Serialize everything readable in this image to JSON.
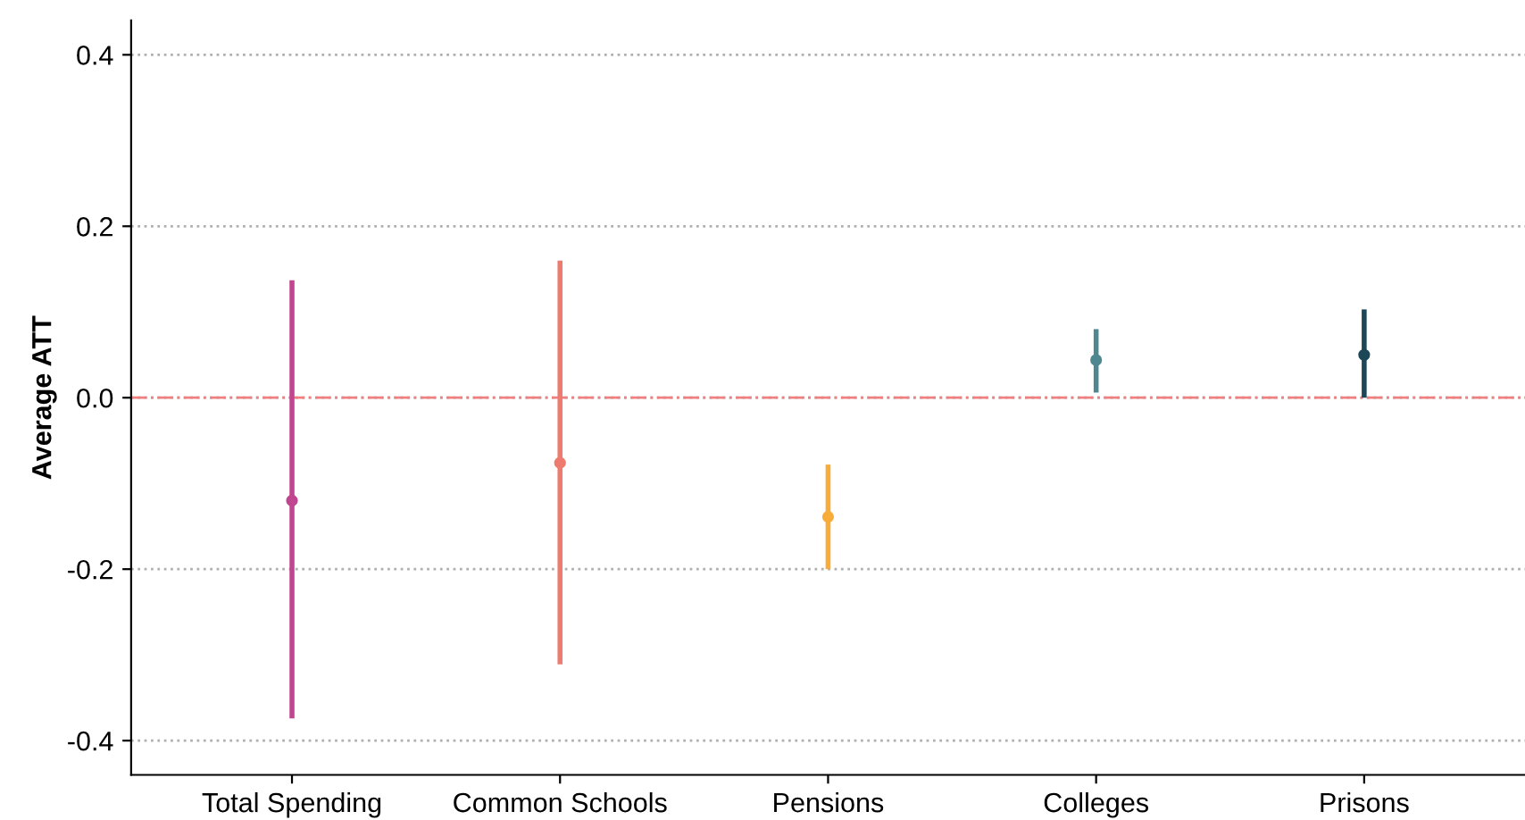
{
  "chart_data": {
    "type": "scatter",
    "ylabel": "Average ATT",
    "categories": [
      "Total Spending",
      "Common Schools",
      "Pensions",
      "Colleges",
      "Prisons"
    ],
    "values": [
      -0.12,
      -0.076,
      -0.139,
      0.044,
      0.05
    ],
    "errors": [
      [
        -0.374,
        0.137
      ],
      [
        -0.311,
        0.16
      ],
      [
        -0.2,
        -0.078
      ],
      [
        0.006,
        0.08
      ],
      [
        0.0,
        0.103
      ]
    ],
    "colors": [
      "#c0468f",
      "#ee7b6f",
      "#f8ac3a",
      "#4f8791",
      "#1c4757"
    ],
    "marker": "circle",
    "ylim": [
      -0.44,
      0.44
    ],
    "yticks": [
      -0.4,
      -0.2,
      {
        "value": 0,
        "label": "0.0"
      },
      0.2,
      0.4
    ],
    "grid": "y",
    "ref_lines": [
      {
        "axis": "y",
        "value": 0,
        "color": "#f08080",
        "line_style": "dashdot"
      }
    ]
  }
}
